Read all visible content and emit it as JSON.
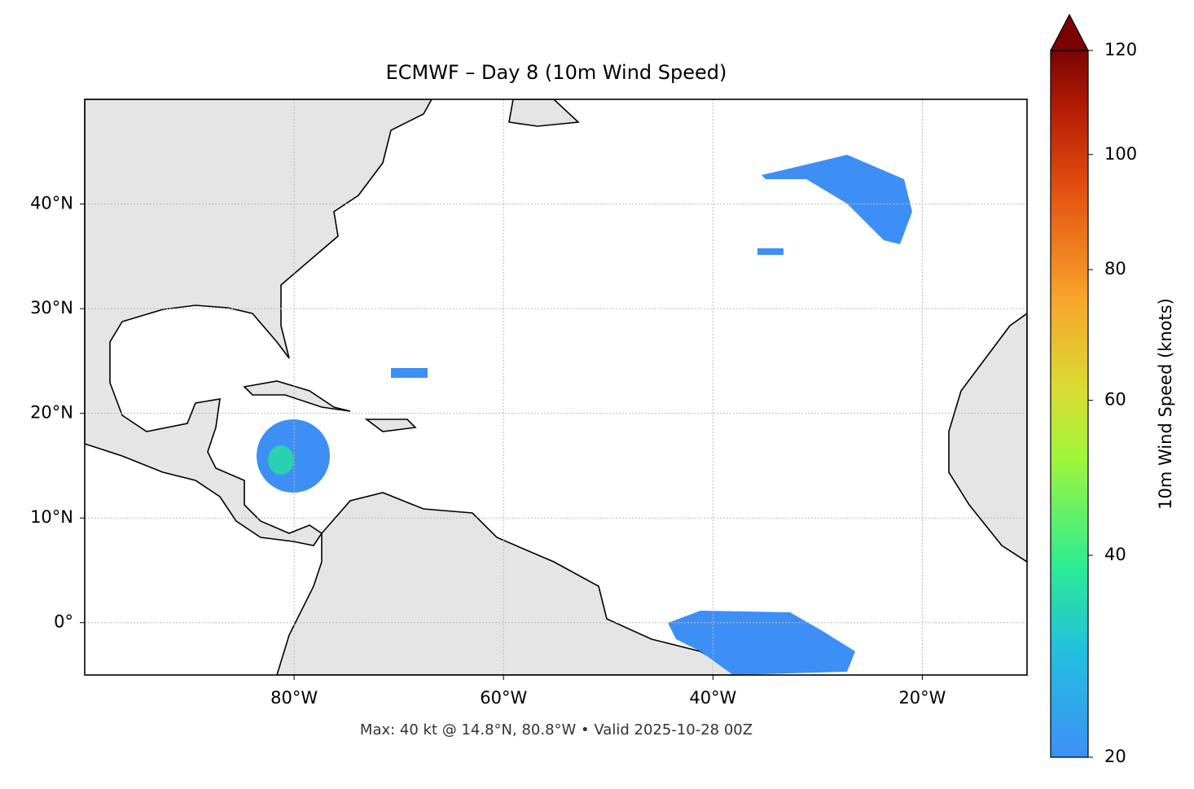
{
  "title": "ECMWF – Day 8 (10m Wind Speed)",
  "footnote": "Max: 40 kt @ 14.8°N, 80.8°W • Valid 2025-10-28 00Z",
  "map": {
    "lonlim": [
      -100,
      -10
    ],
    "latlim": [
      -5,
      50
    ],
    "grid": true,
    "lon_ticks": [
      {
        "value": -80,
        "label": "80°W"
      },
      {
        "value": -60,
        "label": "60°W"
      },
      {
        "value": -40,
        "label": "40°W"
      },
      {
        "value": -20,
        "label": "20°W"
      }
    ],
    "lat_ticks": [
      {
        "value": 0,
        "label": "0°"
      },
      {
        "value": 10,
        "label": "10°N"
      },
      {
        "value": 20,
        "label": "20°N"
      },
      {
        "value": 30,
        "label": "30°N"
      },
      {
        "value": 40,
        "label": "40°N"
      }
    ]
  },
  "colorbar": {
    "label": "10m Wind Speed (knots)",
    "lim": [
      20,
      120
    ],
    "scale": "sqrt",
    "extend": "max",
    "ticks": [
      20,
      40,
      60,
      80,
      100,
      120
    ]
  }
}
